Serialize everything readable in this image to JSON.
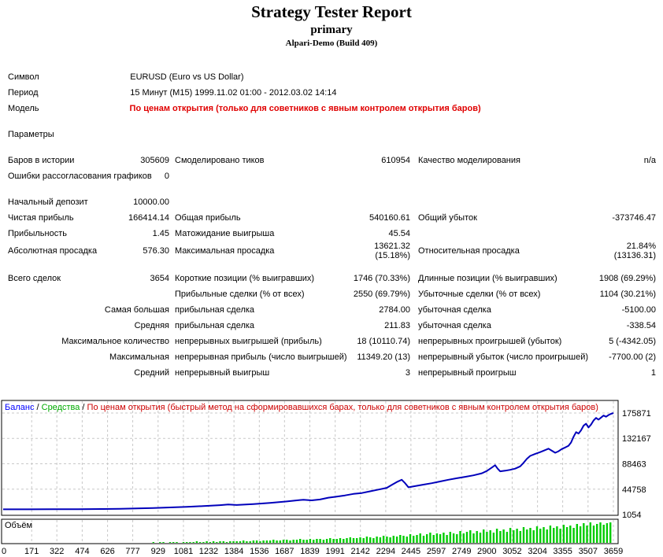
{
  "header": {
    "title": "Strategy Tester Report",
    "subtitle": "primary",
    "build": "Alpari-Demo (Build 409)"
  },
  "colors": {
    "balance_line": "#0000bb",
    "balance_label": "#0000ff",
    "equity_label": "#00aa00",
    "note_red": "#cc0000",
    "model_red": "#e00000",
    "grid": "#c8c8c8",
    "volume_bar": "#00cc00",
    "border": "#000000"
  },
  "table": {
    "rows": [
      {
        "c1l": "Символ",
        "c1v": "",
        "c2l": "EURUSD (Euro vs US Dollar)",
        "c2v": "",
        "c3l": "",
        "c3v": "",
        "wide": true
      },
      {
        "c1l": "Период",
        "c1v": "",
        "c2l": "15 Минут (M15) 1999.11.02 01:00 - 2012.03.02 14:14",
        "c2v": "",
        "c3l": "",
        "c3v": "",
        "wide": true
      },
      {
        "c1l": "Модель",
        "c1v": "",
        "c2l": "По ценам открытия (только для советников с явным контролем открытия баров)",
        "c2v": "",
        "c3l": "",
        "c3v": "",
        "wide": true,
        "red": true
      },
      {
        "c1l": "Параметры",
        "c1v": "",
        "c2l": "",
        "c2v": "",
        "c3l": "",
        "c3v": "",
        "gap": true
      },
      {
        "c1l": "Баров в истории",
        "c1v": "305609",
        "c2l": "Смоделировано тиков",
        "c2v": "610954",
        "c3l": "Качество моделирования",
        "c3v": "n/a",
        "gap": true
      },
      {
        "c1l": "Ошибки рассогласования графиков",
        "c1v": "0",
        "c2l": "",
        "c2v": "",
        "c3l": "",
        "c3v": ""
      },
      {
        "c1l": "Начальный депозит",
        "c1v": "10000.00",
        "c2l": "",
        "c2v": "",
        "c3l": "",
        "c3v": "",
        "gap": true
      },
      {
        "c1l": "Чистая прибыль",
        "c1v": "166414.14",
        "c2l": "Общая прибыль",
        "c2v": "540160.61",
        "c3l": "Общий убыток",
        "c3v": "-373746.47"
      },
      {
        "c1l": "Прибыльность",
        "c1v": "1.45",
        "c2l": "Матожидание выигрыша",
        "c2v": "45.54",
        "c3l": "",
        "c3v": ""
      },
      {
        "c1l": "Абсолютная просадка",
        "c1v": "576.30",
        "c2l": "Максимальная просадка",
        "c2v": "13621.32\n(15.18%)",
        "c3l": "Относительная просадка",
        "c3v": "21.84%\n(13136.31)"
      },
      {
        "c1l": "Всего сделок",
        "c1v": "3654",
        "c2l": "Короткие позиции (% выигравших)",
        "c2v": "1746 (70.33%)",
        "c3l": "Длинные позиции (% выигравших)",
        "c3v": "1908 (69.29%)",
        "gap": true
      },
      {
        "c1l": "",
        "c1v": "",
        "c2l": "Прибыльные сделки (% от всех)",
        "c2v": "2550 (69.79%)",
        "c3l": "Убыточные сделки (% от всех)",
        "c3v": "1104 (30.21%)"
      },
      {
        "c1l": "",
        "c1v": "Самая большая",
        "c2l": "прибыльная сделка",
        "c2v": "2784.00",
        "c3l": "убыточная сделка",
        "c3v": "-5100.00"
      },
      {
        "c1l": "",
        "c1v": "Средняя",
        "c2l": "прибыльная сделка",
        "c2v": "211.83",
        "c3l": "убыточная сделка",
        "c3v": "-338.54"
      },
      {
        "c1l": "",
        "c1v": "Максимальное количество",
        "c2l": "непрерывных выигрышей (прибыль)",
        "c2v": "18 (10110.74)",
        "c3l": "непрерывных проигрышей (убыток)",
        "c3v": "5 (-4342.05)"
      },
      {
        "c1l": "",
        "c1v": "Максимальная",
        "c2l": "непрерывная прибыль (число выигрышей)",
        "c2v": "11349.20 (13)",
        "c3l": "непрерывный убыток (число проигрышей)",
        "c3v": "-7700.00 (2)"
      },
      {
        "c1l": "",
        "c1v": "Средний",
        "c2l": "непрерывный выигрыш",
        "c2v": "3",
        "c3l": "непрерывный проигрыш",
        "c3v": "1"
      }
    ]
  },
  "chart": {
    "legend": {
      "balance": "Баланс",
      "separator": " / ",
      "equity": "Средства",
      "note": "По ценам открытия (быстрый метод на сформировавшихся барах, только для советников с явным контролем открытия баров)"
    },
    "volume_label": "Объём"
  },
  "chart_data": {
    "type": "line",
    "title": "",
    "xlabel": "",
    "ylabel": "",
    "x_axis": {
      "range": [
        0,
        3659
      ],
      "ticks": [
        0,
        171,
        322,
        474,
        626,
        777,
        929,
        1081,
        1232,
        1384,
        1536,
        1687,
        1839,
        1991,
        2142,
        2294,
        2445,
        2597,
        2749,
        2900,
        3052,
        3204,
        3355,
        3507,
        3659
      ]
    },
    "y_axis": {
      "range": [
        1054,
        175871
      ],
      "ticks": [
        175871,
        132167,
        88463,
        44758,
        1054
      ]
    },
    "grid": "dashed",
    "legend_position": "top-left",
    "series": [
      {
        "name": "Баланс",
        "points": [
          [
            0,
            10000
          ],
          [
            150,
            10050
          ],
          [
            300,
            10150
          ],
          [
            450,
            10300
          ],
          [
            600,
            10600
          ],
          [
            700,
            11000
          ],
          [
            800,
            11600
          ],
          [
            900,
            12300
          ],
          [
            1000,
            13200
          ],
          [
            1100,
            14300
          ],
          [
            1200,
            15600
          ],
          [
            1300,
            17200
          ],
          [
            1350,
            18200
          ],
          [
            1400,
            17500
          ],
          [
            1500,
            19000
          ],
          [
            1600,
            21000
          ],
          [
            1700,
            23500
          ],
          [
            1750,
            25000
          ],
          [
            1800,
            26500
          ],
          [
            1850,
            25500
          ],
          [
            1900,
            27000
          ],
          [
            1950,
            30000
          ],
          [
            2000,
            32000
          ],
          [
            2050,
            34000
          ],
          [
            2100,
            36500
          ],
          [
            2150,
            38000
          ],
          [
            2200,
            41000
          ],
          [
            2250,
            44000
          ],
          [
            2300,
            47000
          ],
          [
            2330,
            52000
          ],
          [
            2360,
            57000
          ],
          [
            2390,
            61000
          ],
          [
            2410,
            55000
          ],
          [
            2430,
            48000
          ],
          [
            2470,
            50000
          ],
          [
            2520,
            52500
          ],
          [
            2570,
            55000
          ],
          [
            2620,
            58000
          ],
          [
            2670,
            61000
          ],
          [
            2720,
            63500
          ],
          [
            2770,
            66000
          ],
          [
            2820,
            68500
          ],
          [
            2870,
            72000
          ],
          [
            2900,
            76000
          ],
          [
            2930,
            82000
          ],
          [
            2950,
            86000
          ],
          [
            2965,
            80000
          ],
          [
            2980,
            75500
          ],
          [
            3010,
            76500
          ],
          [
            3040,
            78000
          ],
          [
            3070,
            80000
          ],
          [
            3100,
            84000
          ],
          [
            3120,
            90000
          ],
          [
            3140,
            97000
          ],
          [
            3160,
            102000
          ],
          [
            3190,
            105500
          ],
          [
            3220,
            108500
          ],
          [
            3250,
            112000
          ],
          [
            3270,
            114500
          ],
          [
            3290,
            111000
          ],
          [
            3310,
            107500
          ],
          [
            3330,
            110000
          ],
          [
            3350,
            114000
          ],
          [
            3370,
            116500
          ],
          [
            3390,
            119500
          ],
          [
            3405,
            125000
          ],
          [
            3420,
            135000
          ],
          [
            3435,
            143000
          ],
          [
            3450,
            140500
          ],
          [
            3465,
            146000
          ],
          [
            3480,
            154000
          ],
          [
            3495,
            157500
          ],
          [
            3510,
            151000
          ],
          [
            3525,
            156000
          ],
          [
            3540,
            163000
          ],
          [
            3555,
            167500
          ],
          [
            3570,
            164500
          ],
          [
            3585,
            168000
          ],
          [
            3600,
            171500
          ],
          [
            3615,
            169500
          ],
          [
            3630,
            172500
          ],
          [
            3645,
            174500
          ],
          [
            3659,
            175871
          ]
        ]
      }
    ],
    "volume": {
      "name": "Объём",
      "bar_trade_step": 20,
      "heights": [
        0,
        0,
        0,
        0,
        0,
        0,
        0,
        0,
        0,
        0,
        0,
        0,
        0,
        0,
        0,
        0,
        0,
        0,
        0,
        0,
        0,
        0,
        0,
        0,
        0,
        0,
        0,
        0,
        0,
        0,
        0,
        0,
        0,
        0,
        0,
        0,
        0,
        0,
        0,
        0,
        0,
        0,
        0,
        0,
        0,
        1,
        0,
        1,
        1,
        0,
        1,
        1,
        1,
        0,
        1,
        1,
        1,
        1,
        2,
        1,
        1,
        2,
        1,
        2,
        1,
        2,
        2,
        1,
        2,
        2,
        2,
        2,
        3,
        2,
        2,
        3,
        3,
        2,
        3,
        3,
        3,
        4,
        3,
        3,
        4,
        4,
        3,
        4,
        4,
        5,
        4,
        4,
        5,
        4,
        5,
        5,
        4,
        5,
        6,
        5,
        5,
        6,
        5,
        6,
        7,
        6,
        6,
        7,
        6,
        8,
        7,
        6,
        8,
        7,
        9,
        8,
        7,
        9,
        8,
        10,
        9,
        8,
        11,
        9,
        10,
        12,
        9,
        11,
        13,
        10,
        12,
        11,
        13,
        10,
        14,
        12,
        11,
        15,
        12,
        14,
        16,
        12,
        15,
        13,
        17,
        14,
        16,
        13,
        18,
        15,
        17,
        14,
        19,
        16,
        18,
        15,
        20,
        17,
        19,
        16,
        21,
        18,
        20,
        17,
        22,
        19,
        21,
        18,
        23,
        20,
        22,
        19,
        24,
        21,
        25,
        22,
        26,
        22,
        24,
        26,
        23,
        25,
        26
      ]
    }
  }
}
